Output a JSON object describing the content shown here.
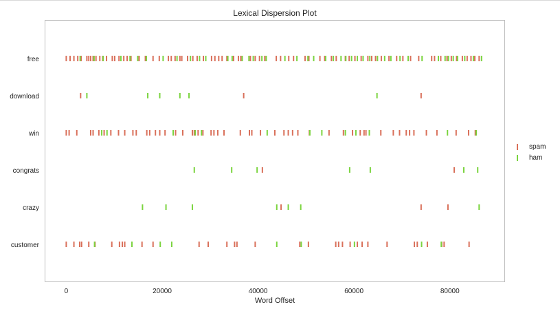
{
  "chart_data": {
    "type": "scatter",
    "title": "Lexical Dispersion Plot",
    "xlabel": "Word Offset",
    "ylabel": "",
    "xlim": [
      -4500,
      91500
    ],
    "xticks": [
      0,
      20000,
      40000,
      60000,
      80000
    ],
    "grid": false,
    "legend_position": "right",
    "categories": [
      "free",
      "download",
      "win",
      "congrats",
      "crazy",
      "customer"
    ],
    "series": [
      {
        "name": "spam",
        "color": "#d9705a",
        "points": {
          "free": [
            0,
            800,
            1600,
            2400,
            3100,
            4300,
            4700,
            5100,
            5600,
            6200,
            7000,
            7600,
            8400,
            9600,
            10100,
            11000,
            12000,
            12700,
            13500,
            15200,
            16500,
            18100,
            19400,
            21300,
            21900,
            22700,
            23700,
            24100,
            25300,
            26400,
            27300,
            28600,
            30300,
            31000,
            31800,
            32500,
            33500,
            34900,
            35900,
            36400,
            38400,
            39400,
            40300,
            41400,
            43800,
            44700,
            46400,
            47400,
            49800,
            50600,
            52900,
            53900,
            55300,
            56300,
            58200,
            59000,
            60200,
            61500,
            62900,
            63700,
            64500,
            65700,
            67300,
            68900,
            70200,
            71800,
            73500,
            76200,
            76800,
            78100,
            79400,
            80300,
            81400,
            82600,
            83600,
            84400,
            85200,
            86100
          ],
          "download": [
            3000,
            37000,
            74000
          ],
          "win": [
            0,
            600,
            2200,
            5100,
            5600,
            6800,
            7900,
            9300,
            10900,
            12200,
            13900,
            14600,
            16800,
            17400,
            18600,
            19500,
            20600,
            22800,
            24300,
            26300,
            26700,
            27500,
            28500,
            30200,
            30800,
            31600,
            32900,
            36300,
            38200,
            38700,
            40500,
            43500,
            45400,
            46300,
            47200,
            48300,
            50700,
            54800,
            57800,
            59700,
            61300,
            62100,
            62500,
            65600,
            68200,
            69500,
            70900,
            71600,
            72500,
            75100,
            77300,
            81300,
            83900,
            85300
          ],
          "congrats": [
            40900,
            80900
          ],
          "crazy": [
            44800,
            74000,
            79600
          ],
          "customer": [
            0,
            1600,
            2800,
            3200,
            4700,
            6000,
            9500,
            11100,
            11700,
            12200,
            15800,
            18100,
            27700,
            29600,
            33500,
            35100,
            35600,
            39400,
            48700,
            50500,
            56200,
            56800,
            57600,
            59200,
            60700,
            61700,
            62900,
            66900,
            72600,
            73200,
            75300,
            78300,
            78800,
            84000
          ]
        }
      },
      {
        "name": "ham",
        "color": "#7bd43f",
        "points": {
          "free": [
            2900,
            5800,
            7700,
            11400,
            13300,
            14900,
            16700,
            20200,
            23100,
            25900,
            27800,
            29100,
            33700,
            34600,
            36700,
            38100,
            39000,
            40800,
            41700,
            45600,
            48100,
            50400,
            51600,
            54100,
            55700,
            57300,
            58300,
            59500,
            60700,
            61900,
            63300,
            64900,
            66400,
            67700,
            69600,
            71300,
            74200,
            77600,
            79000,
            79700,
            80700,
            81600,
            83100,
            84900,
            86600
          ],
          "download": [
            4300,
            17000,
            19500,
            23700,
            25600,
            64800
          ],
          "win": [
            7400,
            8500,
            22300,
            26900,
            28200,
            41900,
            50800,
            53300,
            58200,
            60400,
            63200,
            79500,
            85500
          ],
          "congrats": [
            26700,
            34500,
            39800,
            59100,
            63400,
            82900,
            85800
          ],
          "crazy": [
            15900,
            20800,
            26300,
            43900,
            46300,
            48900,
            86100
          ],
          "customer": [
            5900,
            13700,
            19600,
            22000,
            43900,
            49000,
            60100,
            74100,
            78200
          ]
        }
      }
    ]
  }
}
